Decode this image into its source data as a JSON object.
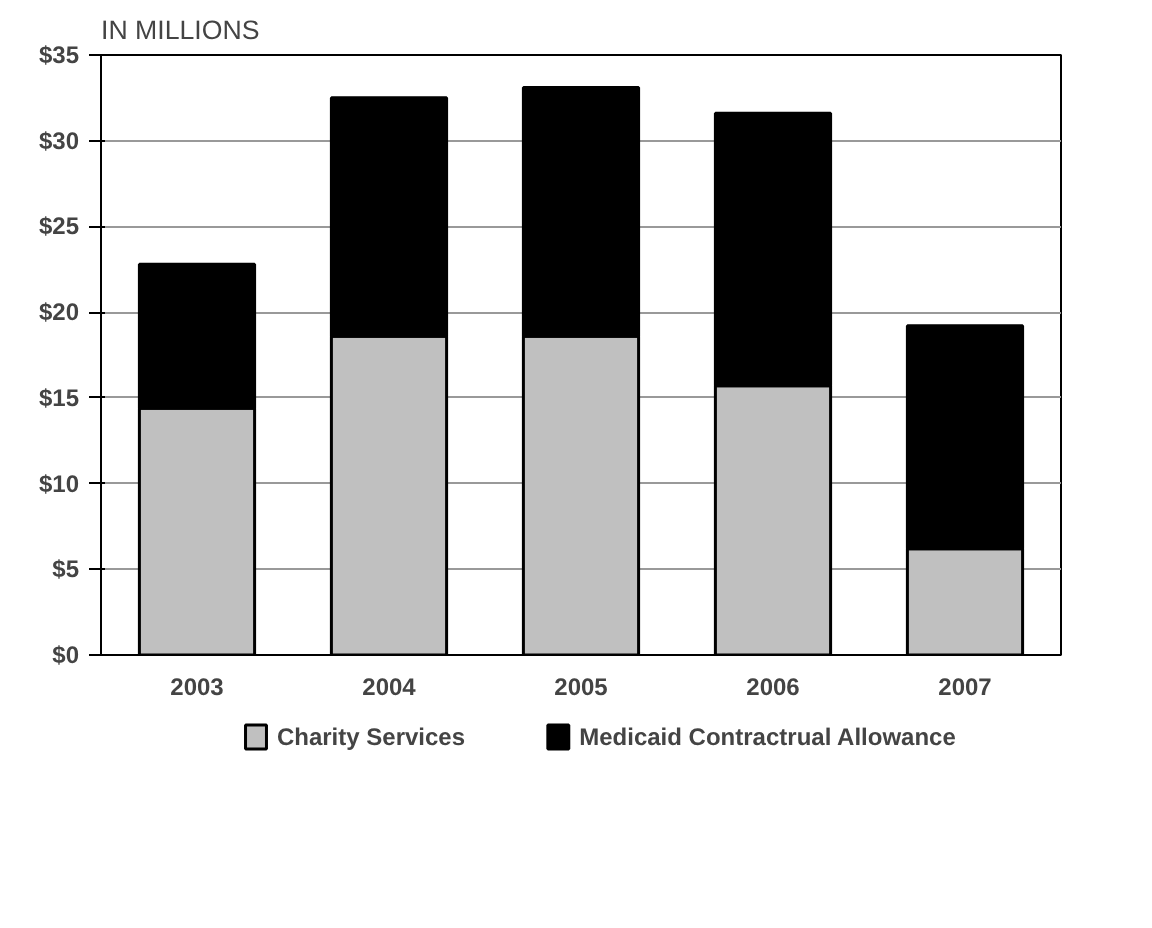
{
  "chart_data": {
    "type": "bar",
    "title": "IN MILLIONS",
    "stacked": true,
    "categories": [
      "2003",
      "2004",
      "2005",
      "2006",
      "2007"
    ],
    "series": [
      {
        "name": "Charity Services",
        "color": "#c0c0c0",
        "values": [
          14.4,
          18.6,
          18.6,
          15.7,
          6.2
        ]
      },
      {
        "name": "Medicaid Contractrual Allowance",
        "color": "#000000",
        "values": [
          8.4,
          13.9,
          14.5,
          15.9,
          13.0
        ]
      }
    ],
    "ylim": [
      0,
      35
    ],
    "yticks": [
      {
        "value": 0,
        "label": "$0"
      },
      {
        "value": 5,
        "label": "$5"
      },
      {
        "value": 10,
        "label": "$10"
      },
      {
        "value": 15,
        "label": "$15"
      },
      {
        "value": 20,
        "label": "$20"
      },
      {
        "value": 25,
        "label": "$25"
      },
      {
        "value": 30,
        "label": "$30"
      },
      {
        "value": 35,
        "label": "$35"
      }
    ],
    "grid": "y",
    "legend": "bottom"
  }
}
